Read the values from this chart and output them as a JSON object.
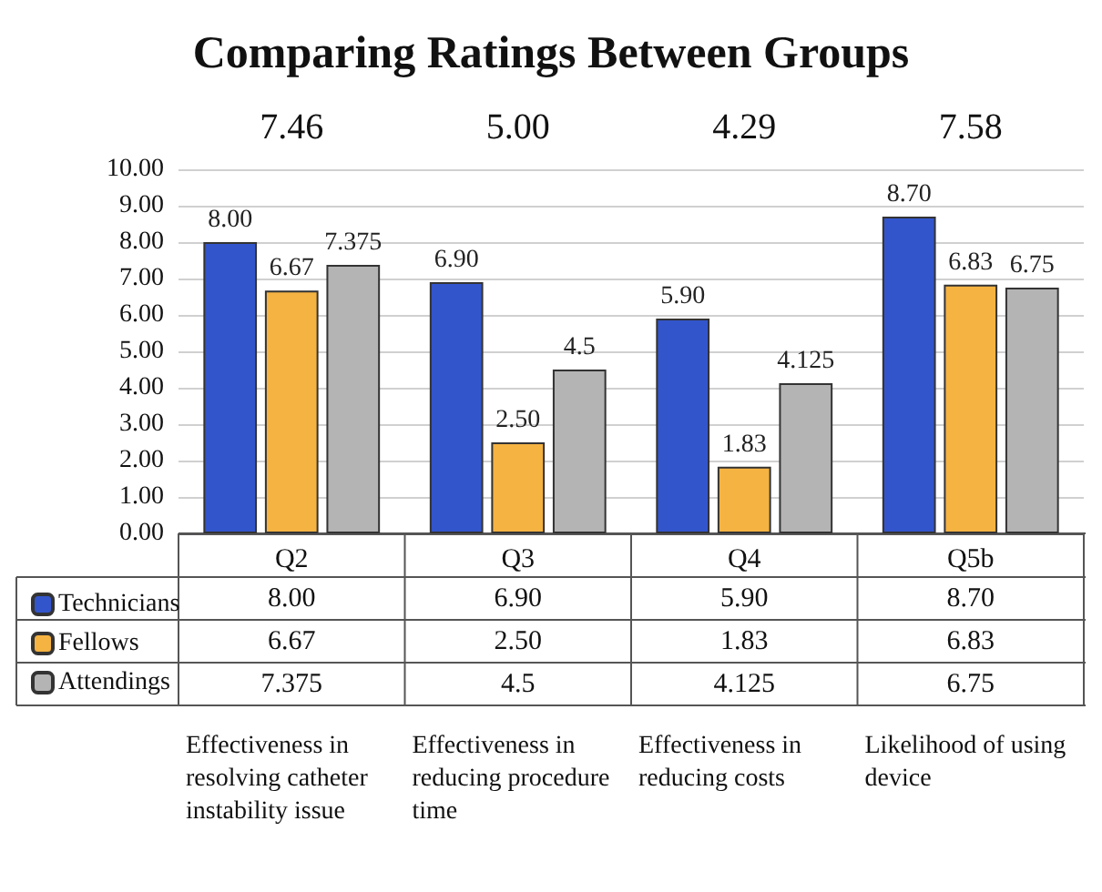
{
  "chart_data": {
    "type": "bar",
    "title": "Comparing Ratings Between Groups",
    "categories": [
      "Q2",
      "Q3",
      "Q4",
      "Q5b"
    ],
    "series": [
      {
        "name": "Technicians",
        "color": "#3355cc",
        "values": [
          8.0,
          6.9,
          5.9,
          8.7
        ],
        "value_labels": [
          "8.00",
          "6.90",
          "5.90",
          "8.70"
        ]
      },
      {
        "name": "Fellows",
        "color": "#f5b342",
        "values": [
          6.67,
          2.5,
          1.83,
          6.83
        ],
        "value_labels": [
          "6.67",
          "2.50",
          "1.83",
          "6.83"
        ]
      },
      {
        "name": "Attendings",
        "color": "#b4b4b4",
        "values": [
          7.375,
          4.5,
          4.125,
          6.75
        ],
        "value_labels": [
          "7.375",
          "4.5",
          "4.125",
          "6.75"
        ]
      }
    ],
    "ylim": [
      0,
      10
    ],
    "yticks": [
      {
        "value": 0,
        "label": "0.00"
      },
      {
        "value": 1,
        "label": "1.00"
      },
      {
        "value": 2,
        "label": "2.00"
      },
      {
        "value": 3,
        "label": "3.00"
      },
      {
        "value": 4,
        "label": "4.00"
      },
      {
        "value": 5,
        "label": "5.00"
      },
      {
        "value": 6,
        "label": "6.00"
      },
      {
        "value": 7,
        "label": "7.00"
      },
      {
        "value": 8,
        "label": "8.00"
      },
      {
        "value": 9,
        "label": "9.00"
      },
      {
        "value": 10,
        "label": "10.00"
      }
    ],
    "grid": "y",
    "legend": "bottom",
    "annotations": [
      "7.46",
      "5.00",
      "4.29",
      "7.58",
      "Effectiveness in resolving catheter instability issue",
      "Effectiveness in reducing procedure time",
      "Effectiveness in reducing costs",
      "Likelihood of using device"
    ]
  }
}
